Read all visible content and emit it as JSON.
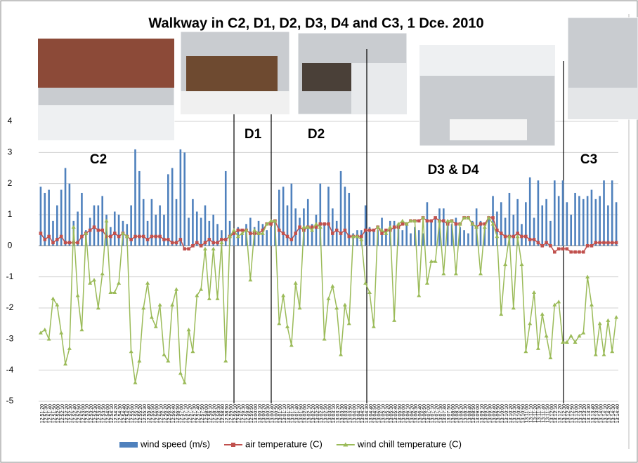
{
  "chart_data": {
    "type": "combo",
    "title": "Walkway in C2, D1, D2, D3, D4 and C3, 1 Dce. 2010",
    "annotations": [
      "C2",
      "D1",
      "D2",
      "D3 & D4",
      "C3"
    ],
    "legend": "bottom",
    "grid": true,
    "ylim": [
      -5,
      4
    ],
    "yticks": [
      -5,
      -4,
      -3,
      -2,
      -1,
      0,
      1,
      2,
      3,
      4
    ],
    "categories": [
      "12:51:20",
      "12:51:30",
      "12:51:40",
      "12:51:50",
      "12:52:00",
      "12:52:10",
      "12:52:20",
      "12:52:30",
      "12:52:40",
      "12:52:50",
      "12:53:00",
      "12:53:10",
      "12:53:20",
      "12:53:30",
      "12:53:40",
      "12:53:50",
      "12:54:00",
      "12:54:10",
      "12:54:20",
      "12:54:30",
      "12:54:40",
      "12:54:50",
      "12:55:00",
      "12:55:10",
      "12:55:20",
      "12:55:30",
      "12:55:40",
      "12:55:50",
      "12:56:00",
      "12:56:10",
      "12:56:20",
      "12:56:30",
      "12:56:40",
      "12:56:50",
      "12:57:00",
      "12:57:10",
      "12:57:20",
      "12:57:30",
      "12:57:40",
      "12:57:50",
      "12:58:00",
      "12:58:10",
      "12:58:20",
      "12:58:30",
      "12:58:40",
      "12:58:50",
      "12:59:00",
      "12:59:10",
      "12:59:20",
      "12:59:30",
      "12:59:40",
      "12:59:50",
      "13:00:00",
      "13:00:10",
      "13:00:20",
      "13:00:30",
      "13:00:40",
      "13:00:50",
      "13:01:00",
      "13:01:10",
      "13:01:20",
      "13:01:30",
      "13:01:40",
      "13:01:50",
      "13:02:00",
      "13:02:10",
      "13:02:20",
      "13:02:30",
      "13:02:40",
      "13:02:50",
      "13:03:00",
      "13:03:10",
      "13:03:20",
      "13:03:30",
      "13:03:40",
      "13:03:50",
      "13:04:00",
      "13:04:10",
      "13:04:20",
      "13:04:30",
      "13:04:40",
      "13:04:50",
      "13:05:00",
      "13:05:10",
      "13:05:20",
      "13:05:30",
      "13:05:40",
      "13:05:50",
      "13:06:00",
      "13:06:10",
      "13:06:20",
      "13:06:30",
      "13:06:40",
      "13:06:50",
      "13:07:00",
      "13:07:10",
      "13:07:20",
      "13:07:30",
      "13:07:40",
      "13:07:50",
      "13:08:00",
      "13:08:10",
      "13:08:20",
      "13:08:30",
      "13:08:40",
      "13:08:50",
      "13:09:00",
      "13:09:10",
      "13:09:20",
      "13:09:30",
      "13:09:40",
      "13:09:50",
      "13:10:00",
      "13:10:10",
      "13:10:20",
      "13:10:30",
      "13:10:40",
      "13:10:50",
      "13:11:00",
      "13:11:10",
      "13:11:20",
      "13:11:30",
      "13:11:40",
      "13:11:50",
      "13:12:00",
      "13:12:10",
      "13:12:20",
      "13:12:30",
      "13:12:40",
      "13:12:50",
      "13:13:00",
      "13:13:10",
      "13:13:20",
      "13:13:30",
      "13:13:40",
      "13:13:50",
      "13:14:00",
      "13:14:10",
      "13:14:20",
      "13:14:30",
      "13:14:40"
    ],
    "series": [
      {
        "name": "wind speed (m/s)",
        "type": "bar",
        "color": "#4f81bd",
        "values": [
          1.9,
          1.7,
          1.8,
          0.8,
          1.3,
          1.8,
          2.5,
          2.0,
          0.8,
          1.1,
          1.7,
          0.5,
          0.9,
          1.3,
          1.3,
          1.6,
          1.0,
          0.6,
          1.1,
          1.0,
          0.8,
          0.7,
          1.3,
          3.1,
          2.4,
          1.5,
          0.8,
          1.5,
          1.0,
          1.3,
          1.0,
          2.3,
          2.5,
          1.5,
          3.1,
          3.0,
          0.9,
          1.5,
          1.1,
          0.9,
          1.3,
          0.8,
          1.0,
          0.7,
          0.5,
          2.4,
          0.8,
          0.4,
          0.6,
          0.4,
          0.7,
          0.9,
          0.6,
          0.8,
          0.7,
          0.5,
          0.6,
          0.8,
          1.8,
          1.9,
          1.3,
          2.0,
          1.2,
          0.9,
          1.2,
          1.5,
          0.7,
          1.0,
          2.0,
          0.7,
          1.9,
          1.2,
          0.8,
          2.4,
          1.9,
          1.7,
          0.4,
          0.5,
          0.5,
          1.3,
          0.6,
          0.5,
          0.5,
          0.9,
          0.5,
          0.8,
          0.8,
          0.6,
          0.5,
          0.7,
          0.4,
          0.6,
          0.5,
          0.4,
          1.4,
          0.8,
          0.9,
          1.2,
          1.2,
          0.8,
          0.7,
          0.9,
          0.6,
          0.5,
          0.4,
          0.8,
          1.2,
          0.8,
          0.6,
          0.9,
          1.6,
          1.1,
          1.4,
          0.9,
          1.7,
          1.0,
          1.5,
          0.7,
          1.4,
          2.2,
          0.9,
          2.1,
          1.3,
          1.5,
          0.8,
          2.1,
          1.6,
          2.1,
          1.4,
          1.0,
          1.7,
          1.6,
          1.5,
          1.6,
          1.8,
          1.5,
          1.6,
          2.1,
          1.3,
          2.1,
          1.4
        ]
      },
      {
        "name": "air temperature (C)",
        "type": "line",
        "marker": "square",
        "color": "#c0504d",
        "values": [
          0.4,
          0.2,
          0.3,
          0.1,
          0.2,
          0.3,
          0.1,
          0.1,
          0.1,
          0.1,
          0.3,
          0.4,
          0.5,
          0.6,
          0.5,
          0.5,
          0.3,
          0.3,
          0.4,
          0.3,
          0.4,
          0.3,
          0.2,
          0.3,
          0.3,
          0.3,
          0.2,
          0.3,
          0.3,
          0.3,
          0.2,
          0.2,
          0.1,
          0.1,
          0.2,
          -0.1,
          -0.1,
          0.0,
          0.1,
          0.0,
          0.1,
          0.2,
          0.1,
          0.1,
          0.2,
          0.2,
          0.3,
          0.4,
          0.5,
          0.5,
          0.5,
          0.4,
          0.4,
          0.4,
          0.5,
          0.7,
          0.7,
          0.8,
          0.5,
          0.4,
          0.3,
          0.2,
          0.4,
          0.6,
          0.5,
          0.6,
          0.6,
          0.6,
          0.7,
          0.7,
          0.7,
          0.4,
          0.5,
          0.4,
          0.5,
          0.3,
          0.3,
          0.3,
          0.3,
          0.5,
          0.5,
          0.5,
          0.6,
          0.4,
          0.5,
          0.5,
          0.6,
          0.6,
          0.7,
          0.7,
          0.8,
          0.8,
          0.8,
          0.9,
          0.8,
          0.8,
          0.9,
          0.8,
          0.8,
          0.7,
          0.8,
          0.7,
          0.7,
          0.9,
          0.9,
          0.7,
          0.6,
          0.7,
          0.7,
          0.9,
          0.9,
          0.5,
          0.4,
          0.3,
          0.3,
          0.3,
          0.4,
          0.3,
          0.3,
          0.2,
          0.2,
          0.1,
          0.0,
          0.1,
          0.0,
          -0.2,
          -0.1,
          -0.1,
          -0.1,
          -0.2,
          -0.2,
          -0.2,
          -0.2,
          0.0,
          0.0,
          0.1,
          0.1,
          0.1,
          0.1,
          0.1,
          0.1
        ]
      },
      {
        "name": "wind chill temperature (C)",
        "type": "line",
        "marker": "triangle",
        "color": "#9bbb59",
        "values": [
          -2.8,
          -2.7,
          -3.0,
          -1.7,
          -1.9,
          -2.8,
          -3.8,
          -3.3,
          0.6,
          -1.6,
          -2.7,
          0.4,
          -1.2,
          -1.1,
          -2.0,
          -0.9,
          0.8,
          -1.5,
          -1.5,
          -1.2,
          0.4,
          0.3,
          -3.4,
          -4.4,
          -3.7,
          -2.0,
          -1.2,
          -2.3,
          -2.6,
          -1.9,
          -3.5,
          -3.7,
          -1.9,
          -1.4,
          -4.1,
          -4.4,
          -2.7,
          -3.4,
          -1.6,
          -1.4,
          -0.1,
          -1.7,
          -0.1,
          -1.7,
          0.1,
          -3.7,
          0.3,
          0.5,
          0.3,
          0.4,
          0.5,
          -1.1,
          0.5,
          0.4,
          0.4,
          0.7,
          0.8,
          0.8,
          -2.5,
          -1.6,
          -2.6,
          -3.2,
          -1.2,
          -2.0,
          0.6,
          0.6,
          0.5,
          0.7,
          0.6,
          -3.0,
          -1.7,
          -1.3,
          -2.0,
          -3.5,
          -1.9,
          -2.5,
          0.3,
          0.3,
          0.2,
          -1.2,
          -1.5,
          -2.6,
          0.6,
          0.5,
          0.4,
          0.6,
          -2.4,
          0.7,
          0.8,
          0.7,
          0.8,
          0.8,
          -1.6,
          0.9,
          -1.2,
          -0.5,
          -0.5,
          0.8,
          -0.9,
          0.8,
          0.8,
          -0.9,
          0.7,
          0.9,
          0.9,
          0.7,
          0.6,
          -0.9,
          0.6,
          0.9,
          0.7,
          0.3,
          -2.2,
          -0.6,
          0.3,
          -2.0,
          0.3,
          -0.6,
          -3.4,
          -2.5,
          -1.5,
          -3.3,
          -2.2,
          -2.9,
          -3.6,
          -1.9,
          -1.8,
          -3.1,
          -3.1,
          -2.9,
          -3.1,
          -2.9,
          -2.8,
          -1.0,
          -1.9,
          -3.5,
          -2.5,
          -3.5,
          -2.4,
          -3.4,
          -2.3
        ]
      }
    ]
  }
}
